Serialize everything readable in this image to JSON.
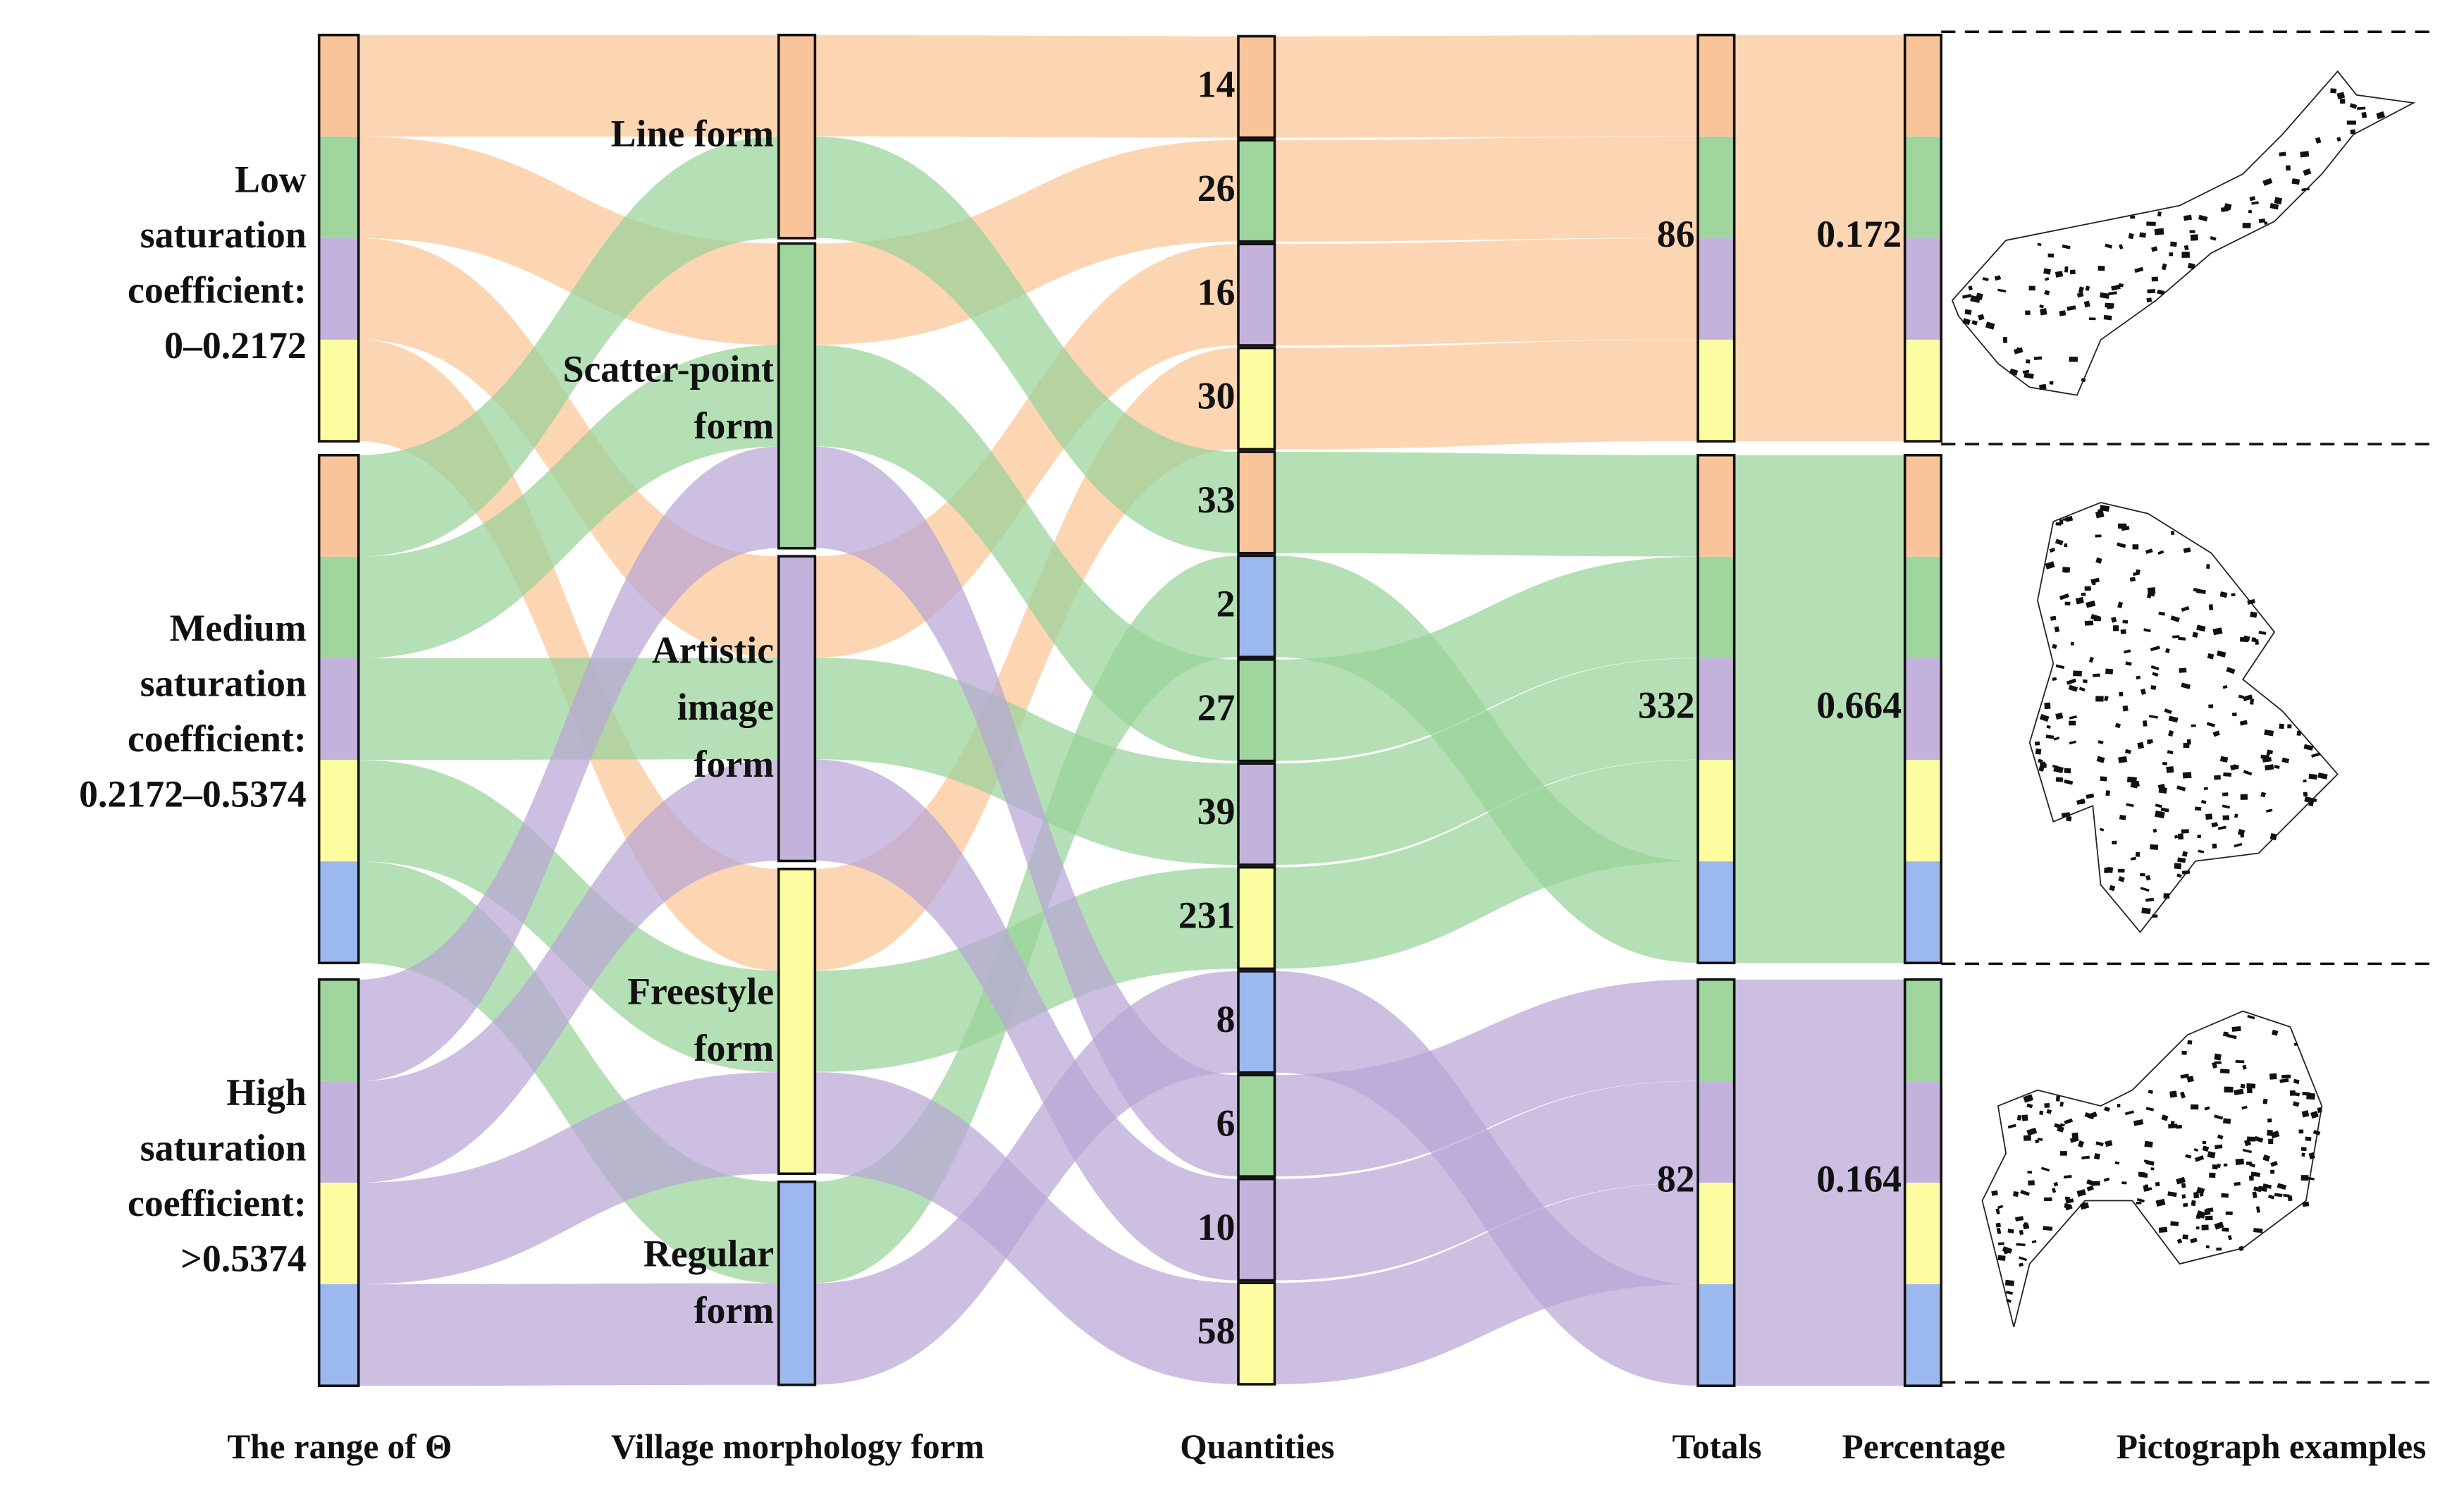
{
  "columns": [
    "The range of Θ",
    "Village morphology form",
    "Quantities",
    "Totals",
    "Percentage",
    "Pictograph examples"
  ],
  "groups": [
    {
      "label": [
        "Low",
        "saturation",
        "coefficient:",
        "0–0.2172"
      ],
      "total": 86,
      "percentage": 0.172
    },
    {
      "label": [
        "Medium",
        "saturation",
        "coefficient:",
        "0.2172–0.5374"
      ],
      "total": 332,
      "percentage": 0.664
    },
    {
      "label": [
        "High",
        "saturation",
        "coefficient:",
        ">0.5374"
      ],
      "total": 82,
      "percentage": 0.164
    }
  ],
  "forms": [
    [
      "Line form"
    ],
    [
      "Scatter-point",
      "form"
    ],
    [
      "Artistic",
      "image",
      "form"
    ],
    [
      "Freestyle",
      "form"
    ],
    [
      "Regular",
      "form"
    ]
  ],
  "quantities": [
    14,
    26,
    16,
    30,
    33,
    2,
    27,
    39,
    231,
    8,
    6,
    10,
    58
  ]
}
